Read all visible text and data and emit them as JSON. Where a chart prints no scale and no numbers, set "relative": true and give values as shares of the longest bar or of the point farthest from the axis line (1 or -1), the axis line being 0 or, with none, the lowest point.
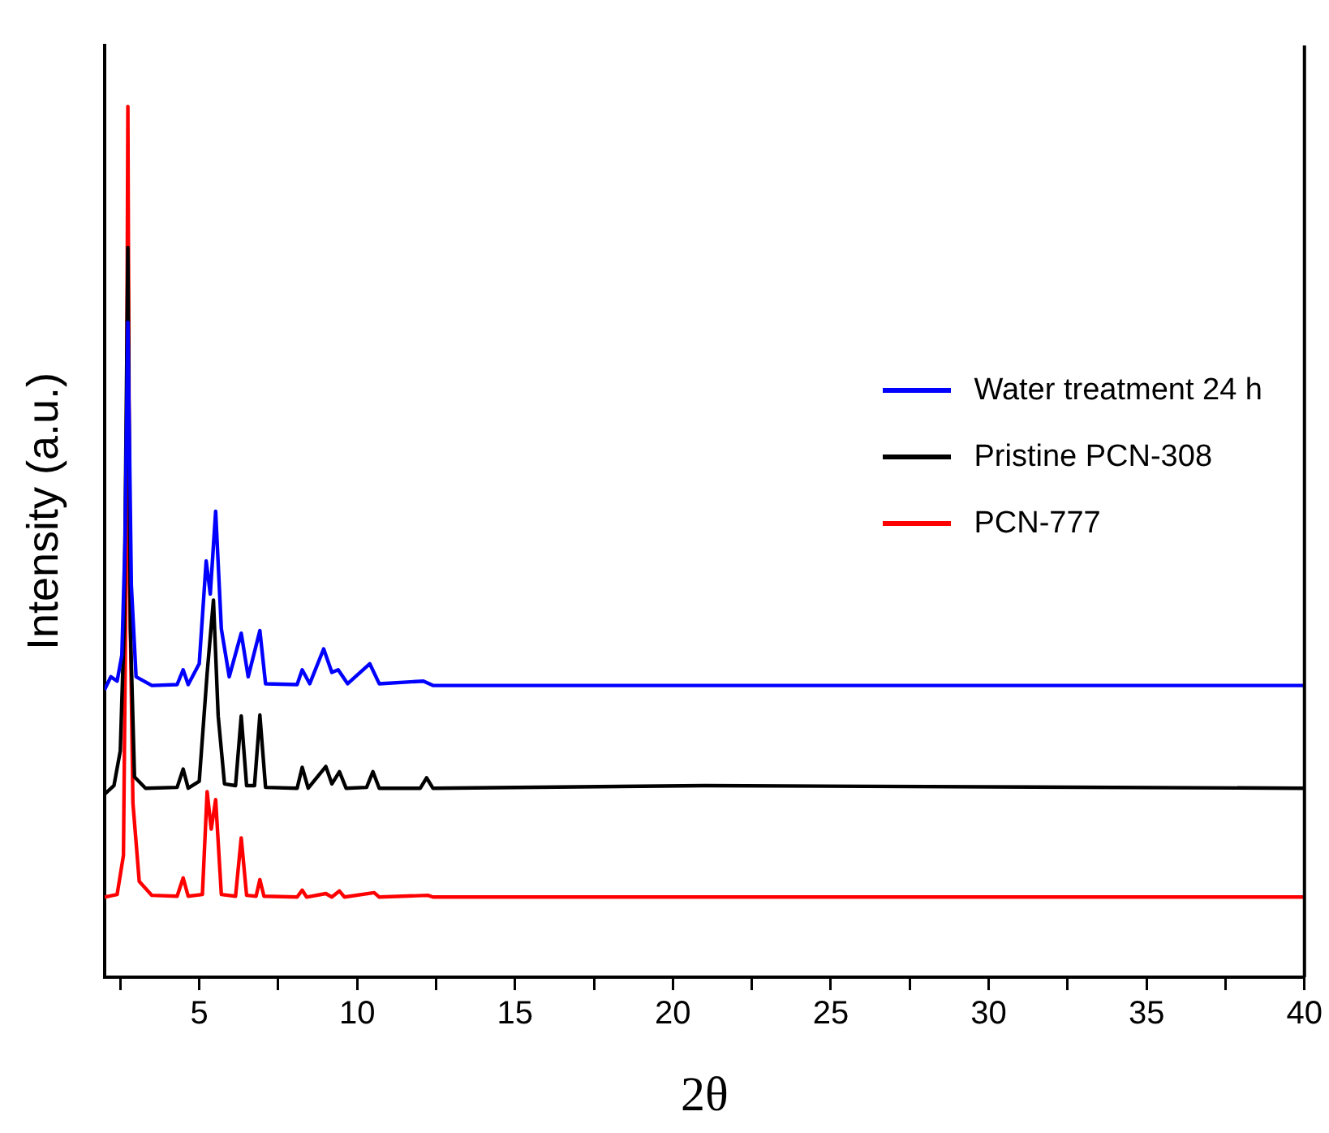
{
  "chart_data": {
    "type": "line",
    "xlabel": "2θ",
    "ylabel": "Intensity (a.u.)",
    "relative": true,
    "legend": "top right",
    "marker": "none",
    "line_style": "solid",
    "grid": false,
    "xlim": [
      2,
      40
    ],
    "xticks": [
      {
        "value": 2.5,
        "label": null
      },
      5,
      {
        "value": 7.5,
        "label": null
      },
      10,
      {
        "value": 12.5,
        "label": null
      },
      15,
      {
        "value": 17.5,
        "label": null
      },
      20,
      {
        "value": 22.5,
        "label": null
      },
      25,
      {
        "value": 27.5,
        "label": null
      },
      30,
      {
        "value": 32.5,
        "label": null
      },
      35,
      {
        "value": 37.5,
        "label": null
      },
      40
    ],
    "series": [
      {
        "name": "Water treatment 24 h",
        "color": "#0000ff",
        "x": [
          2.0,
          2.2,
          2.4,
          2.55,
          2.65,
          2.74,
          2.85,
          3.0,
          3.5,
          4.3,
          4.49,
          4.65,
          5.0,
          5.22,
          5.35,
          5.52,
          5.7,
          5.95,
          6.33,
          6.55,
          6.92,
          7.1,
          8.1,
          8.26,
          8.5,
          8.94,
          9.2,
          9.4,
          9.7,
          10.4,
          10.7,
          12.1,
          12.4,
          40
        ],
        "values": [
          0.33,
          0.345,
          0.34,
          0.37,
          0.5,
          0.752,
          0.45,
          0.345,
          0.335,
          0.336,
          0.353,
          0.336,
          0.36,
          0.478,
          0.44,
          0.535,
          0.4,
          0.345,
          0.395,
          0.345,
          0.398,
          0.337,
          0.336,
          0.353,
          0.337,
          0.377,
          0.35,
          0.353,
          0.337,
          0.36,
          0.337,
          0.34,
          0.335,
          0.335
        ]
      },
      {
        "name": "Pristine PCN-308",
        "color": "#000000",
        "x": [
          2.0,
          2.3,
          2.5,
          2.62,
          2.74,
          2.82,
          2.95,
          3.3,
          4.3,
          4.49,
          4.65,
          5.0,
          5.25,
          5.45,
          5.6,
          5.8,
          6.15,
          6.33,
          6.5,
          6.75,
          6.92,
          7.1,
          8.1,
          8.26,
          8.45,
          9.01,
          9.2,
          9.44,
          9.65,
          10.3,
          10.5,
          10.7,
          12.0,
          12.2,
          12.4,
          21,
          40
        ],
        "values": [
          0.21,
          0.22,
          0.26,
          0.4,
          0.838,
          0.4,
          0.23,
          0.217,
          0.218,
          0.239,
          0.217,
          0.225,
          0.349,
          0.433,
          0.3,
          0.222,
          0.22,
          0.3,
          0.22,
          0.22,
          0.301,
          0.218,
          0.217,
          0.241,
          0.217,
          0.242,
          0.222,
          0.236,
          0.217,
          0.218,
          0.236,
          0.217,
          0.217,
          0.229,
          0.217,
          0.22,
          0.217
        ]
      },
      {
        "name": "PCN-777",
        "color": "#ff0000",
        "x": [
          2.0,
          2.4,
          2.6,
          2.68,
          2.74,
          2.8,
          2.9,
          3.1,
          3.5,
          4.3,
          4.49,
          4.65,
          5.1,
          5.25,
          5.38,
          5.52,
          5.7,
          6.15,
          6.33,
          6.5,
          6.8,
          6.92,
          7.05,
          8.1,
          8.26,
          8.4,
          9.01,
          9.2,
          9.44,
          9.6,
          10.54,
          10.7,
          12.24,
          12.4,
          40
        ],
        "values": [
          0.092,
          0.095,
          0.14,
          0.45,
          1.0,
          0.45,
          0.2,
          0.11,
          0.094,
          0.093,
          0.114,
          0.093,
          0.095,
          0.213,
          0.17,
          0.204,
          0.095,
          0.093,
          0.16,
          0.094,
          0.093,
          0.112,
          0.093,
          0.092,
          0.1,
          0.092,
          0.096,
          0.092,
          0.099,
          0.092,
          0.097,
          0.092,
          0.094,
          0.092,
          0.092
        ]
      }
    ]
  }
}
